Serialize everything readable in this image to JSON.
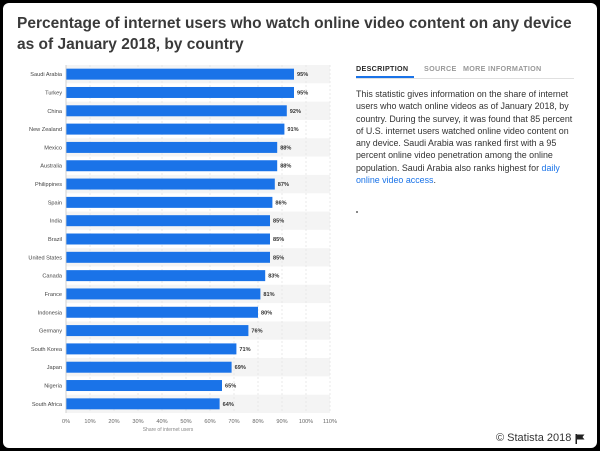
{
  "title": "Percentage of internet users who watch online video content on any device as of January 2018, by country",
  "tabs": [
    {
      "label": "DESCRIPTION",
      "active": true
    },
    {
      "label": "SOURCE",
      "active": false
    },
    {
      "label": "MORE INFORMATION",
      "active": false
    }
  ],
  "description": {
    "text": "This statistic gives information on the share of internet users who watch online videos as of January 2018, by country. During the survey, it was found that 85 percent of U.S. internet users watched online video content on any device. Saudi Arabia was ranked first with a 95 percent online video penetration among the online population. Saudi Arabia also ranks highest for ",
    "link_text": "daily online video access",
    "after_link": "."
  },
  "copyright": "© Statista 2018",
  "icons": {
    "flag": "flag-icon"
  },
  "colors": {
    "bar": "#1a73e8",
    "title": "#3a3a3a",
    "link": "#1a73e8"
  },
  "chart_data": {
    "type": "bar",
    "orientation": "horizontal",
    "categories": [
      "Saudi Arabia",
      "Turkey",
      "China",
      "New Zealand",
      "Mexico",
      "Australia",
      "Philippines",
      "Spain",
      "India",
      "Brazil",
      "United States",
      "Canada",
      "France",
      "Indonesia",
      "Germany",
      "South Korea",
      "Japan",
      "Nigeria",
      "South Africa"
    ],
    "values": [
      95,
      95,
      92,
      91,
      88,
      88,
      87,
      86,
      85,
      85,
      85,
      83,
      81,
      80,
      76,
      71,
      69,
      65,
      64
    ],
    "value_labels": [
      "95%",
      "95%",
      "92%",
      "91%",
      "88%",
      "88%",
      "87%",
      "86%",
      "85%",
      "85%",
      "85%",
      "83%",
      "81%",
      "80%",
      "76%",
      "71%",
      "69%",
      "65%",
      "64%"
    ],
    "xlabel": "Share of internet users",
    "ylabel": "",
    "xlim": [
      0,
      110
    ],
    "ticks": [
      0,
      10,
      20,
      30,
      40,
      50,
      60,
      70,
      80,
      90,
      100,
      110
    ],
    "tick_labels": [
      "0%",
      "10%",
      "20%",
      "30%",
      "40%",
      "50%",
      "60%",
      "70%",
      "80%",
      "90%",
      "100%",
      "110%"
    ],
    "grid": true,
    "legend": "none"
  }
}
